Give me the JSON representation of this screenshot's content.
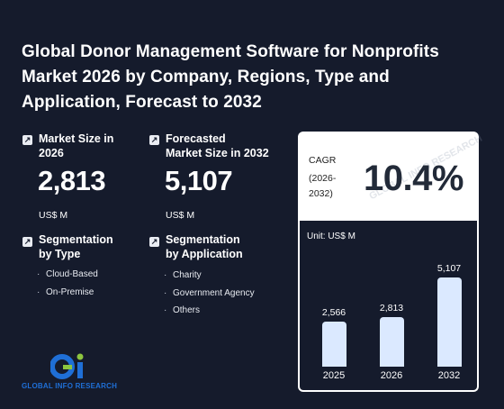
{
  "title": "Global Donor Management Software for Nonprofits Market 2026 by Company, Regions, Type and Application, Forecast to 2032",
  "market_size": {
    "label_line1": "Market Size in",
    "label_line2": "2026",
    "value": "2,813",
    "unit": "US$ M"
  },
  "forecast": {
    "label_line1": "Forecasted",
    "label_line2": "Market Size in 2032",
    "value": "5,107",
    "unit": "US$ M"
  },
  "seg_type": {
    "label_line1": "Segmentation",
    "label_line2": "by Type",
    "items": [
      "Cloud-Based",
      "On-Premise"
    ]
  },
  "seg_app": {
    "label_line1": "Segmentation",
    "label_line2": "by Application",
    "items": [
      "Charity",
      "Government Agency",
      "Others"
    ]
  },
  "cagr": {
    "label": "CAGR",
    "period_line1": "(2026-",
    "period_line2": "2032)",
    "value": "10.4%"
  },
  "chart_data": {
    "type": "bar",
    "title": "",
    "unit_label": "Unit: US$ M",
    "categories": [
      "2025",
      "2026",
      "2032"
    ],
    "values": [
      2566,
      2813,
      5107
    ],
    "value_labels": [
      "2,566",
      "2,813",
      "5,107"
    ],
    "ylim": [
      0,
      5107
    ]
  },
  "watermark": "GLOBAL INFO RESEARCH",
  "logo": {
    "text": "GLOBAL INFO RESEARCH"
  },
  "colors": {
    "background": "#151b2c",
    "bar": "#dbe9ff",
    "logo_blue": "#1f6fd6",
    "logo_green": "#8dc63f"
  },
  "icons": {
    "stat": "arrow-up-right-icon"
  }
}
